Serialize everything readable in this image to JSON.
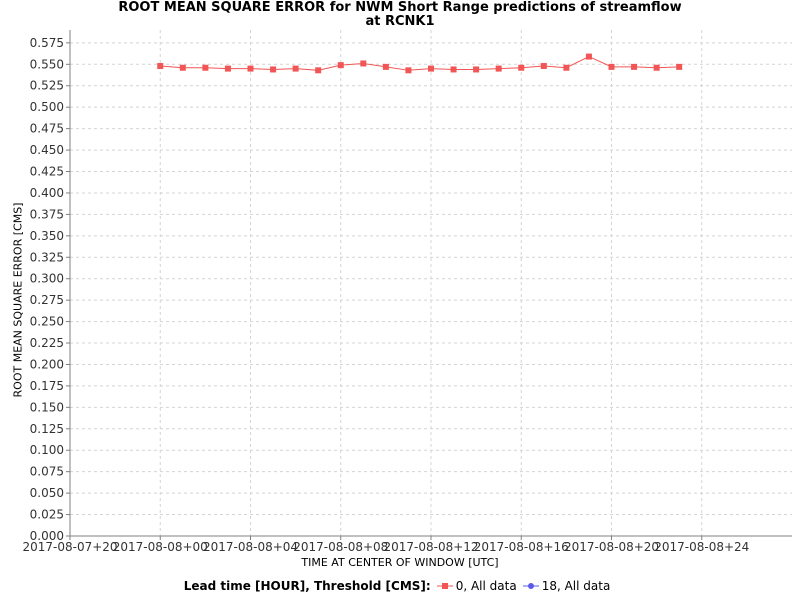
{
  "chart_data": {
    "type": "line",
    "title": "ROOT MEAN SQUARE ERROR for NWM Short Range predictions of streamflow",
    "subtitle": "at RCNK1",
    "xlabel": "TIME AT CENTER OF WINDOW [UTC]",
    "ylabel": "ROOT MEAN SQUARE ERROR [CMS]",
    "ylim": [
      0,
      0.59
    ],
    "yticks": [
      "0.000",
      "0.025",
      "0.050",
      "0.075",
      "0.100",
      "0.125",
      "0.150",
      "0.175",
      "0.200",
      "0.225",
      "0.250",
      "0.275",
      "0.300",
      "0.325",
      "0.350",
      "0.375",
      "0.400",
      "0.425",
      "0.450",
      "0.475",
      "0.500",
      "0.525",
      "0.550",
      "0.575"
    ],
    "xticks": [
      "2017-08-07+20",
      "2017-08-08+00",
      "2017-08-08+04",
      "2017-08-08+08",
      "2017-08-08+12",
      "2017-08-08+16",
      "2017-08-08+20",
      "2017-08-08+24"
    ],
    "grid": true,
    "legend_title": "Lead time [HOUR], Threshold [CMS]:",
    "legend_position": "bottom",
    "series": [
      {
        "name": "0, All data",
        "color": "#f25555",
        "marker": "square",
        "x_hours": [
          0,
          1,
          2,
          3,
          4,
          5,
          6,
          7,
          8,
          9,
          10,
          11,
          12,
          13,
          14,
          15,
          16,
          17,
          18,
          19,
          20,
          21,
          22,
          23
        ],
        "values": [
          0.548,
          0.546,
          0.546,
          0.545,
          0.545,
          0.544,
          0.545,
          0.543,
          0.549,
          0.551,
          0.547,
          0.543,
          0.545,
          0.544,
          0.544,
          0.545,
          0.546,
          0.548,
          0.546,
          0.559,
          0.547,
          0.547,
          0.546,
          0.547
        ]
      },
      {
        "name": "18, All data",
        "color": "#5b5be8",
        "marker": "circle",
        "x_hours": [],
        "values": []
      }
    ]
  }
}
